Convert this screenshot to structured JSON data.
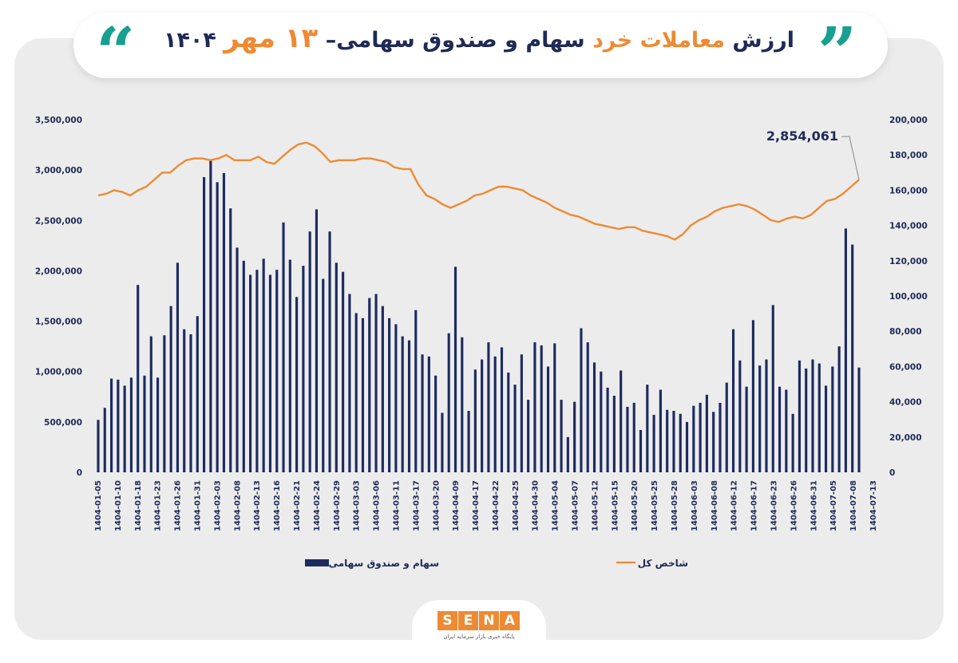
{
  "header": {
    "title_part1": "ارزش ",
    "title_part2": "معاملات خرد",
    "title_part3": " سهام و صندوق سهامی– ",
    "title_part4": "۱۳ مهر",
    "title_part5": " ۱۴۰۴",
    "quote_left": "“",
    "quote_right": "”"
  },
  "colors": {
    "bars": "#1d2b5f",
    "line": "#ee8a33",
    "accent": "#17a08f"
  },
  "footer": {
    "logo_letters": [
      "S",
      "E",
      "N",
      "A"
    ],
    "logo_subtitle": "پایگاه خبری بازار سرمایه ایران"
  },
  "chart_data": {
    "type": "bar",
    "left_axis": {
      "range": [
        0,
        3500000
      ],
      "ticks": [
        "0",
        "500,000",
        "1,000,000",
        "1,500,000",
        "2,000,000",
        "2,500,000",
        "3,000,000",
        "3,500,000"
      ],
      "tick_values": [
        0,
        500000,
        1000000,
        1500000,
        2000000,
        2500000,
        3000000,
        3500000
      ]
    },
    "right_axis": {
      "range": [
        0,
        200000
      ],
      "ticks": [
        "0",
        "20,000",
        "40,000",
        "60,000",
        "80,000",
        "100,000",
        "120,000",
        "140,000",
        "160,000",
        "180,000",
        "200,000"
      ],
      "tick_values": [
        0,
        20000,
        40000,
        60000,
        80000,
        100000,
        120000,
        140000,
        160000,
        180000,
        200000
      ]
    },
    "x_tick_labels": [
      "1404-01-05",
      "1404-01-10",
      "1404-01-18",
      "1404-01-23",
      "1404-01-26",
      "1404-01-31",
      "1404-02-03",
      "1404-02-08",
      "1404-02-13",
      "1404-02-16",
      "1404-02-21",
      "1404-02-24",
      "1404-02-29",
      "1404-03-03",
      "1404-03-06",
      "1404-03-11",
      "1404-03-17",
      "1404-03-20",
      "1404-04-09",
      "1404-04-17",
      "1404-04-22",
      "1404-04-25",
      "1404-04-30",
      "1404-05-04",
      "1404-05-07",
      "1404-05-12",
      "1404-05-15",
      "1404-05-20",
      "1404-05-25",
      "1404-05-28",
      "1404-06-03",
      "1404-06-08",
      "1404-06-12",
      "1404-06-17",
      "1404-06-23",
      "1404-06-26",
      "1404-06-31",
      "1404-07-05",
      "1404-07-08",
      "1404-07-13"
    ],
    "series": [
      {
        "name": "سهام و صندوق سهامی",
        "type": "bar",
        "axis": "left",
        "values": [
          520000,
          640000,
          930000,
          920000,
          860000,
          940000,
          1860000,
          960000,
          1350000,
          940000,
          1360000,
          1650000,
          2080000,
          1420000,
          1370000,
          1550000,
          2930000,
          3100000,
          2880000,
          2970000,
          2620000,
          2230000,
          2100000,
          1960000,
          2010000,
          2120000,
          1960000,
          2010000,
          2480000,
          2110000,
          1740000,
          2050000,
          2390000,
          2610000,
          1920000,
          2390000,
          2080000,
          1990000,
          1770000,
          1580000,
          1530000,
          1730000,
          1770000,
          1650000,
          1530000,
          1470000,
          1350000,
          1310000,
          1610000,
          1170000,
          1150000,
          960000,
          590000,
          1380000,
          2040000,
          1340000,
          610000,
          1020000,
          1120000,
          1290000,
          1150000,
          1240000,
          990000,
          870000,
          1170000,
          720000,
          1290000,
          1260000,
          1050000,
          1280000,
          720000,
          350000,
          700000,
          1430000,
          1290000,
          1090000,
          1000000,
          840000,
          760000,
          1010000,
          650000,
          690000,
          420000,
          870000,
          570000,
          820000,
          620000,
          610000,
          580000,
          500000,
          660000,
          690000,
          770000,
          600000,
          690000,
          890000,
          1420000,
          1110000,
          850000,
          1510000,
          1060000,
          1120000,
          1660000,
          850000,
          820000,
          580000,
          1110000,
          1030000,
          1120000,
          1080000,
          860000,
          1050000,
          1250000,
          2420000,
          2260000,
          1040000
        ]
      },
      {
        "name": "شاخص کل",
        "type": "line",
        "axis": "right",
        "last_label": "2,854,061",
        "values": [
          157000,
          158000,
          160000,
          159000,
          157000,
          160000,
          162000,
          166000,
          170000,
          170000,
          174000,
          177000,
          178000,
          178000,
          177000,
          178000,
          180000,
          177000,
          177000,
          177000,
          179000,
          176000,
          175000,
          179000,
          183000,
          186000,
          187000,
          185000,
          181000,
          176000,
          177000,
          177000,
          177000,
          178000,
          178000,
          177000,
          176000,
          173000,
          172000,
          172000,
          163000,
          157000,
          155000,
          152000,
          150000,
          152000,
          154000,
          157000,
          158000,
          160000,
          162000,
          162000,
          161000,
          160000,
          157000,
          155000,
          153000,
          150000,
          148000,
          146000,
          145000,
          143000,
          141000,
          140000,
          139000,
          138000,
          139000,
          139000,
          137000,
          136000,
          135000,
          134000,
          132000,
          135000,
          140000,
          143000,
          145000,
          148000,
          150000,
          151000,
          152000,
          151000,
          149000,
          146000,
          143000,
          142000,
          144000,
          145000,
          144000,
          146000,
          150000,
          154000,
          155000,
          158000,
          162000,
          166000
        ]
      }
    ],
    "legend": [
      "سهام و صندوق سهامی",
      "شاخص کل"
    ],
    "legend_position": "bottom",
    "grid": false
  }
}
